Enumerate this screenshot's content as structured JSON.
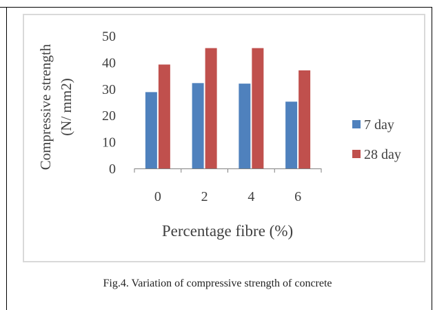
{
  "caption": "Fig.4. Variation of compressive strength of concrete",
  "colors": {
    "7 day": "#4f81bd",
    "28 day": "#c0504d",
    "axis": "#808080",
    "text": "#404040"
  },
  "chart_data": {
    "type": "bar",
    "categories": [
      "0",
      "2",
      "4",
      "6"
    ],
    "series": [
      {
        "name": "7 day",
        "values": [
          28.8,
          32.2,
          32.0,
          25.2
        ]
      },
      {
        "name": "28 day",
        "values": [
          39.2,
          45.4,
          45.4,
          37.0
        ]
      }
    ],
    "xlabel": "Percentage fibre (%)",
    "ylabel_lines": [
      "Compressive strength",
      "(N/ mm2)"
    ],
    "yticks": [
      "0",
      "10",
      "20",
      "30",
      "40",
      "50"
    ],
    "ylim": [
      0,
      50
    ],
    "grid": false,
    "legend": "right"
  }
}
